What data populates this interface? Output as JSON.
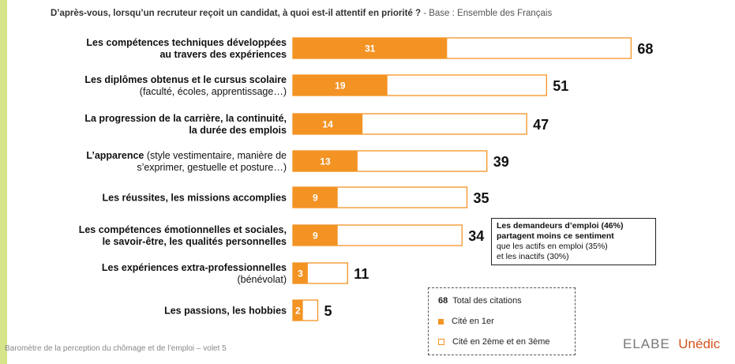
{
  "question": {
    "text": "D’après-vous, lorsqu’un recruteur reçoit un candidat, à quoi est-il attentif en priorité ?",
    "base": " - Base : Ensemble des Français"
  },
  "chart_data": {
    "type": "bar",
    "orientation": "horizontal",
    "stacked_overlay": true,
    "categories": [
      {
        "main": "Les compétences techniques développées",
        "main2": "au travers des expériences",
        "sub": ""
      },
      {
        "main": "Les diplômes obtenus et le cursus scolaire",
        "main2": "",
        "sub": "(faculté, écoles, apprentissage…)"
      },
      {
        "main": "La progression de la carrière, la continuité,",
        "main2": "la durée des emplois",
        "sub": ""
      },
      {
        "main": "L’apparence",
        "main2": "",
        "sub_inline": " (style vestimentaire, manière de",
        "sub": "s’exprimer, gestuelle et posture…)"
      },
      {
        "main": "Les réussites, les missions accomplies",
        "main2": "",
        "sub": ""
      },
      {
        "main": "Les compétences émotionnelles et sociales,",
        "main2": "le savoir-être, les qualités personnelles",
        "sub": ""
      },
      {
        "main": "Les expériences extra-professionnelles",
        "main2": "",
        "sub": "(bénévolat)"
      },
      {
        "main": "Les passions, les hobbies",
        "main2": "",
        "sub": ""
      }
    ],
    "series": [
      {
        "name": "Cité en 1er",
        "values": [
          31,
          19,
          14,
          13,
          9,
          9,
          3,
          2
        ]
      },
      {
        "name": "Total des citations",
        "values": [
          68,
          51,
          47,
          39,
          35,
          34,
          11,
          5
        ]
      }
    ],
    "colors": {
      "first": "#f39324",
      "total_outline": "#f39324"
    }
  },
  "callout": {
    "bold": "Les demandeurs d’emploi (46%) partagent moins ce sentiment",
    "rest1": "que les actifs en emploi (35%)",
    "rest2": "et les inactifs (30%)"
  },
  "legend": {
    "total_num": "68",
    "total_label": "Total des citations",
    "first_label": "Cité en 1er",
    "other_label": "Cité en 2ème et en 3ème"
  },
  "footer": "Baromètre de la perception du chômage et de l’emploi – volet 5",
  "brand": {
    "elabe": "ELABE",
    "unedic": "Unédic"
  }
}
